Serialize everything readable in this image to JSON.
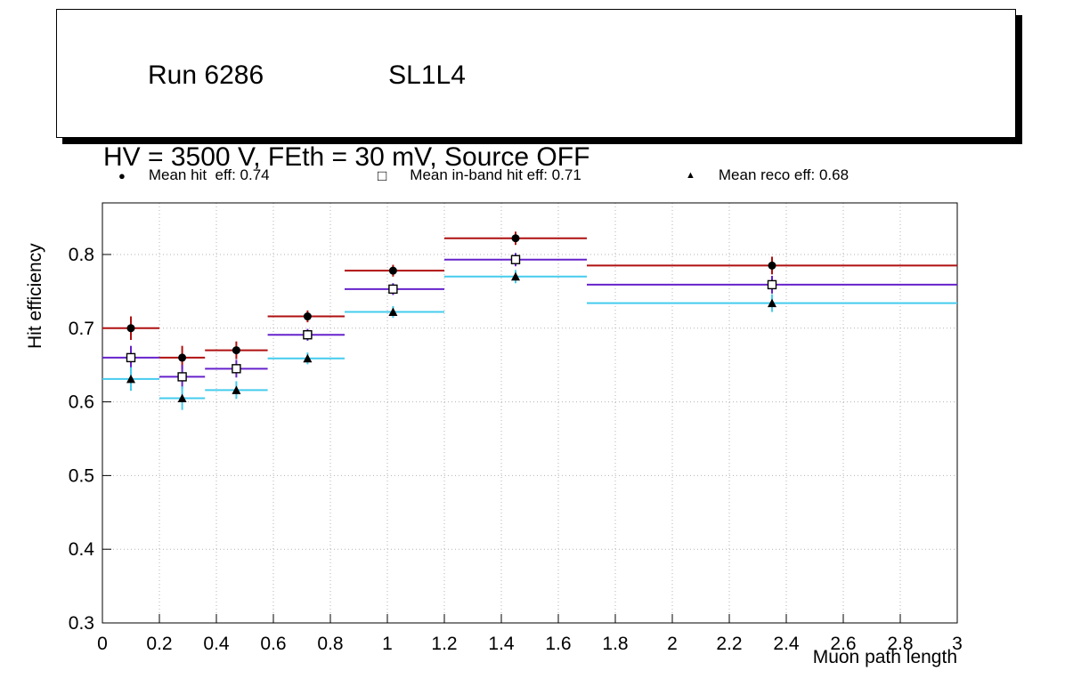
{
  "title": {
    "line1_left": "Run 6286",
    "line1_right": "SL1L4",
    "line2": "HV = 3500 V, FEth = 30 mV, Source OFF"
  },
  "legend": {
    "items": [
      {
        "marker": "filled-circle",
        "glyph": "●",
        "label": "Mean hit  eff: 0.74"
      },
      {
        "marker": "open-square",
        "glyph": "□",
        "label": "Mean in-band hit eff: 0.71"
      },
      {
        "marker": "filled-triangle",
        "glyph": "▲",
        "label": "Mean reco eff: 0.68"
      }
    ]
  },
  "chart_data": {
    "type": "scatter",
    "title": "Run 6286 SL1L4 — HV = 3500 V, FEth = 30 mV, Source OFF",
    "xlabel": "Muon path length",
    "ylabel": "Hit efficiency",
    "xlim": [
      0,
      3
    ],
    "ylim": [
      0.3,
      0.87
    ],
    "grid": true,
    "legend_position": "top",
    "x_ticks": [
      0,
      0.2,
      0.4,
      0.6,
      0.8,
      1,
      1.2,
      1.4,
      1.6,
      1.8,
      2,
      2.2,
      2.4,
      2.6,
      2.8,
      3
    ],
    "x_tick_labels": [
      "0",
      "0.2",
      "0.4",
      "0.6",
      "0.8",
      "1",
      "1.2",
      "1.4",
      "1.6",
      "1.8",
      "2",
      "2.2",
      "2.4",
      "2.6",
      "2.8",
      "3"
    ],
    "y_ticks": [
      0.3,
      0.4,
      0.5,
      0.6,
      0.7,
      0.8
    ],
    "y_tick_labels": [
      "0.3",
      "0.4",
      "0.5",
      "0.6",
      "0.7",
      "0.8"
    ],
    "bins": [
      {
        "xlow": 0.0,
        "xhigh": 0.2,
        "xcenter": 0.1
      },
      {
        "xlow": 0.2,
        "xhigh": 0.36,
        "xcenter": 0.28
      },
      {
        "xlow": 0.36,
        "xhigh": 0.58,
        "xcenter": 0.47
      },
      {
        "xlow": 0.58,
        "xhigh": 0.85,
        "xcenter": 0.72
      },
      {
        "xlow": 0.85,
        "xhigh": 1.2,
        "xcenter": 1.02
      },
      {
        "xlow": 1.2,
        "xhigh": 1.7,
        "xcenter": 1.45
      },
      {
        "xlow": 1.7,
        "xhigh": 3.0,
        "xcenter": 2.35
      }
    ],
    "series": [
      {
        "name": "Mean hit eff",
        "mean": 0.74,
        "marker": "filled-circle",
        "color": "#b01010",
        "values": [
          0.7,
          0.66,
          0.67,
          0.716,
          0.778,
          0.822,
          0.785
        ],
        "errors": [
          0.016,
          0.016,
          0.012,
          0.008,
          0.008,
          0.009,
          0.012
        ]
      },
      {
        "name": "Mean in-band hit eff",
        "mean": 0.71,
        "marker": "open-square",
        "color": "#6622cc",
        "values": [
          0.66,
          0.634,
          0.645,
          0.691,
          0.753,
          0.793,
          0.759
        ],
        "errors": [
          0.016,
          0.016,
          0.012,
          0.008,
          0.008,
          0.009,
          0.012
        ]
      },
      {
        "name": "Mean reco eff",
        "mean": 0.68,
        "marker": "filled-triangle",
        "color": "#44ccee",
        "values": [
          0.631,
          0.605,
          0.616,
          0.659,
          0.722,
          0.77,
          0.734
        ],
        "errors": [
          0.016,
          0.016,
          0.012,
          0.008,
          0.008,
          0.009,
          0.012
        ]
      }
    ]
  }
}
